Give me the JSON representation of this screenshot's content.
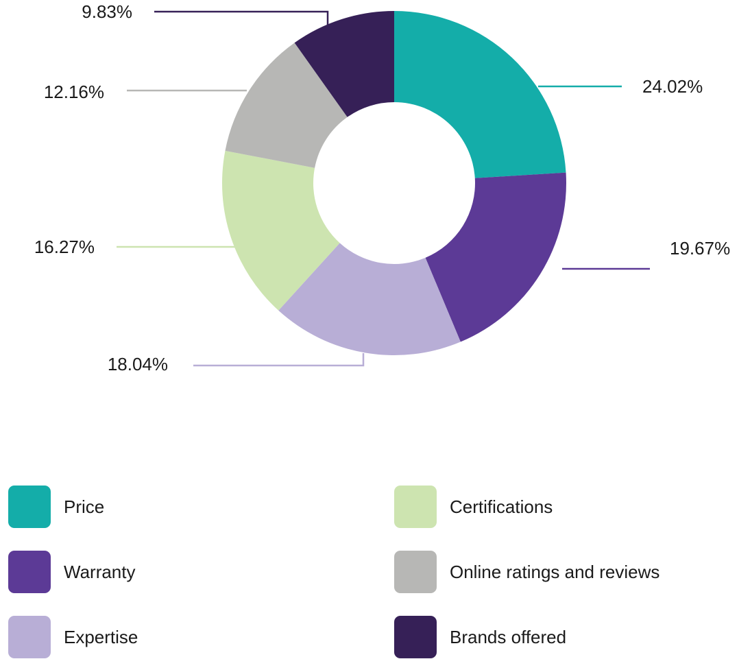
{
  "chart_data": {
    "type": "donut",
    "categories": [
      "Price",
      "Warranty",
      "Expertise",
      "Certifications",
      "Online ratings and reviews",
      "Brands offered"
    ],
    "values": [
      24.02,
      19.67,
      18.04,
      16.27,
      12.16,
      9.83
    ],
    "value_labels": [
      "24.02%",
      "19.67%",
      "18.04%",
      "16.27%",
      "12.16%",
      "9.83%"
    ],
    "colors": [
      "#14ada9",
      "#5c3a96",
      "#b8aed6",
      "#cde4b0",
      "#b7b7b5",
      "#362057"
    ]
  }
}
